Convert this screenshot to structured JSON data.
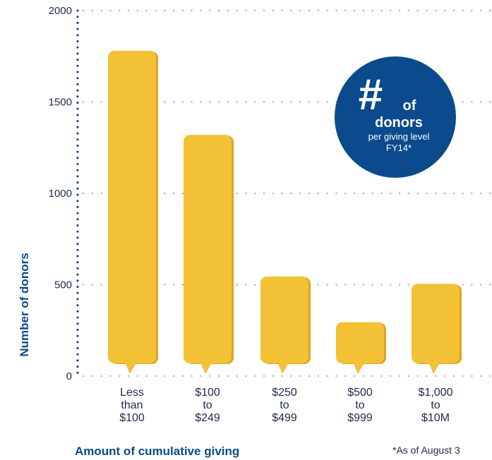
{
  "chart_data": {
    "type": "bar",
    "categories": [
      [
        "Less",
        "than",
        "$100"
      ],
      [
        "$100",
        "to",
        "$249"
      ],
      [
        "$250",
        "to",
        "$499"
      ],
      [
        "$500",
        "to",
        "$999"
      ],
      [
        "$1,000",
        "to",
        "$10M"
      ]
    ],
    "values": [
      1780,
      1320,
      545,
      295,
      505
    ],
    "ylim": [
      0,
      2000
    ],
    "yticks": [
      "0",
      "500",
      "1000",
      "1500",
      "2000"
    ],
    "ytick_values": [
      0,
      500,
      1000,
      1500,
      2000
    ],
    "ylabel": "Number of donors",
    "xlabel": "Amount of cumulative giving",
    "grid": true,
    "colors": {
      "bar": "#f2c136",
      "bar_shade": "#dba521",
      "grid": "#9aa6c8",
      "axis": "#0b3a78",
      "badge": "#0b4a8c"
    }
  },
  "badge": {
    "symbol": "#",
    "line1": "of",
    "line2": "donors",
    "line3": "per giving level",
    "line4": "FY14*"
  },
  "footnote": "*As of August 3"
}
